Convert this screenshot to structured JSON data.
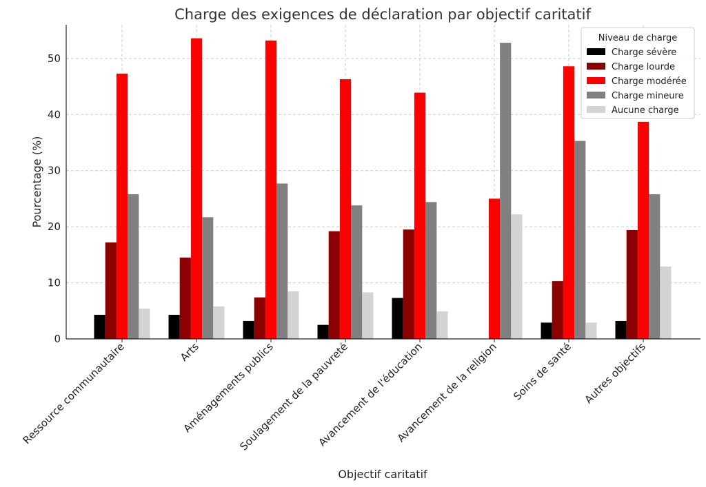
{
  "chart_data": {
    "type": "bar",
    "title": "Charge des exigences de déclaration par objectif caritatif",
    "xlabel": "Objectif caritatif",
    "ylabel": "Pourcentage (%)",
    "ylim": [
      0,
      56
    ],
    "yticks": [
      0,
      10,
      20,
      30,
      40,
      50
    ],
    "grid": true,
    "legend": {
      "title": "Niveau de charge",
      "placement": "top-right"
    },
    "categories": [
      "Ressource communautaire",
      "Arts",
      "Aménagements publics",
      "Soulagement de la pauvreté",
      "Avancement de l'éducation",
      "Avancement de la religion",
      "Soins de santé",
      "Autres objectifs"
    ],
    "series": [
      {
        "name": "Charge sévère",
        "color": "#000000",
        "values": [
          4.3,
          4.3,
          3.2,
          2.5,
          7.3,
          0,
          2.9,
          3.2
        ]
      },
      {
        "name": "Charge lourde",
        "color": "#8b0000",
        "values": [
          17.2,
          14.5,
          7.4,
          19.2,
          19.5,
          0,
          10.3,
          19.4
        ]
      },
      {
        "name": "Charge modérée",
        "color": "#ff0000",
        "values": [
          47.3,
          53.6,
          53.2,
          46.3,
          43.9,
          25.0,
          48.6,
          38.7
        ]
      },
      {
        "name": "Charge mineure",
        "color": "#808080",
        "values": [
          25.8,
          21.7,
          27.7,
          23.8,
          24.4,
          52.8,
          35.3,
          25.8
        ]
      },
      {
        "name": "Aucune charge",
        "color": "#d3d3d3",
        "values": [
          5.4,
          5.8,
          8.5,
          8.3,
          4.9,
          22.2,
          2.9,
          12.9
        ]
      }
    ]
  }
}
